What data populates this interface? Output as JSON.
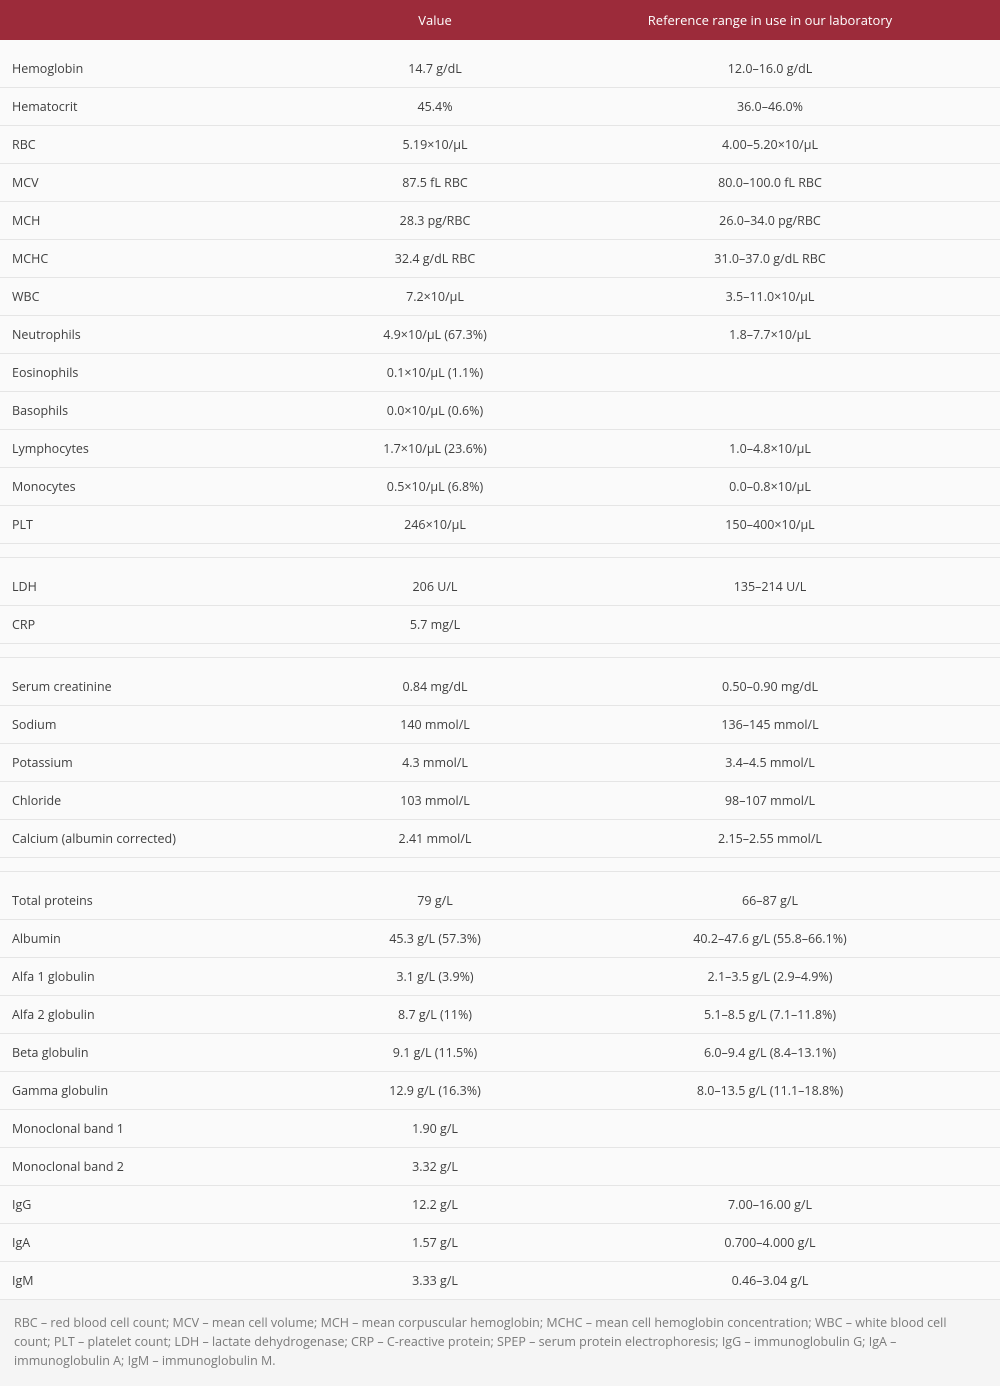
{
  "columns": {
    "param": "",
    "value": "Value",
    "reference": "Reference range in use in our laboratory"
  },
  "sections": [
    {
      "rows": [
        {
          "param": "Hemoglobin",
          "value": "14.7 g/dL",
          "ref": "12.0–16.0 g/dL"
        },
        {
          "param": "Hematocrit",
          "value": "45.4%",
          "ref": "36.0–46.0%"
        },
        {
          "param": "RBC",
          "value": "5.19×10/µL",
          "ref": "4.00–5.20×10/µL"
        },
        {
          "param": "MCV",
          "value": "87.5 fL RBC",
          "ref": "80.0–100.0 fL RBC"
        },
        {
          "param": "MCH",
          "value": "28.3 pg/RBC",
          "ref": "26.0–34.0 pg/RBC"
        },
        {
          "param": "MCHC",
          "value": "32.4 g/dL RBC",
          "ref": "31.0–37.0 g/dL RBC"
        },
        {
          "param": "WBC",
          "value": "7.2×10/µL",
          "ref": "3.5–11.0×10/µL"
        },
        {
          "param": "Neutrophils",
          "value": "4.9×10/µL (67.3%)",
          "ref": "1.8–7.7×10/µL"
        },
        {
          "param": "Eosinophils",
          "value": "0.1×10/µL (1.1%)",
          "ref": ""
        },
        {
          "param": "Basophils",
          "value": "0.0×10/µL (0.6%)",
          "ref": ""
        },
        {
          "param": "Lymphocytes",
          "value": "1.7×10/µL (23.6%)",
          "ref": "1.0–4.8×10/µL"
        },
        {
          "param": "Monocytes",
          "value": "0.5×10/µL (6.8%)",
          "ref": "0.0–0.8×10/µL"
        },
        {
          "param": "PLT",
          "value": "246×10/µL",
          "ref": "150–400×10/µL"
        }
      ]
    },
    {
      "rows": [
        {
          "param": "LDH",
          "value": "206 U/L",
          "ref": "135–214 U/L"
        },
        {
          "param": "CRP",
          "value": "5.7 mg/L",
          "ref": ""
        }
      ]
    },
    {
      "rows": [
        {
          "param": "Serum creatinine",
          "value": "0.84 mg/dL",
          "ref": "0.50–0.90 mg/dL"
        },
        {
          "param": "Sodium",
          "value": "140 mmol/L",
          "ref": "136–145 mmol/L"
        },
        {
          "param": "Potassium",
          "value": "4.3 mmol/L",
          "ref": "3.4–4.5 mmol/L"
        },
        {
          "param": "Chloride",
          "value": "103 mmol/L",
          "ref": "98–107 mmol/L"
        },
        {
          "param": "Calcium (albumin corrected)",
          "value": "2.41 mmol/L",
          "ref": "2.15–2.55 mmol/L"
        }
      ]
    },
    {
      "rows": [
        {
          "param": "Total proteins",
          "value": "79 g/L",
          "ref": "66–87 g/L"
        },
        {
          "param": "Albumin",
          "value": "45.3 g/L (57.3%)",
          "ref": "40.2–47.6 g/L (55.8–66.1%)"
        },
        {
          "param": "Alfa 1 globulin",
          "value": "3.1 g/L (3.9%)",
          "ref": "2.1–3.5 g/L (2.9–4.9%)"
        },
        {
          "param": "Alfa 2 globulin",
          "value": "8.7 g/L (11%)",
          "ref": "5.1–8.5 g/L (7.1–11.8%)"
        },
        {
          "param": "Beta globulin",
          "value": "9.1 g/L (11.5%)",
          "ref": "6.0–9.4 g/L (8.4–13.1%)"
        },
        {
          "param": "Gamma globulin",
          "value": "12.9 g/L (16.3%)",
          "ref": "8.0–13.5 g/L (11.1–18.8%)"
        },
        {
          "param": "Monoclonal band 1",
          "value": "1.90 g/L",
          "ref": ""
        },
        {
          "param": "Monoclonal band 2",
          "value": "3.32 g/L",
          "ref": ""
        },
        {
          "param": "IgG",
          "value": "12.2 g/L",
          "ref": "7.00–16.00 g/L"
        },
        {
          "param": "IgA",
          "value": "1.57 g/L",
          "ref": "0.700–4.000 g/L"
        },
        {
          "param": "IgM",
          "value": "3.33 g/L",
          "ref": "0.46–3.04 g/L"
        }
      ]
    }
  ],
  "footnote": "RBC – red blood cell count; MCV – mean cell volume; MCH – mean corpuscular hemoglobin; MCHC – mean cell hemoglobin concentration; WBC – white blood cell count; PLT – platelet count; LDH – lactate dehydrogenase; CRP – C-reactive protein; SPEP – serum protein electrophoresis; IgG – immunoglobulin G; IgA – immunoglobulin A; IgM – immunoglobulin M.",
  "style": {
    "header_bg": "#9c2b3a",
    "header_color": "#ffffff",
    "row_border": "#e5e5e5",
    "text_color": "#404040",
    "footnote_color": "#7a7a7a",
    "footnote_bg": "#f5f5f5",
    "font_size_body": 12.5,
    "font_size_header": 13
  }
}
